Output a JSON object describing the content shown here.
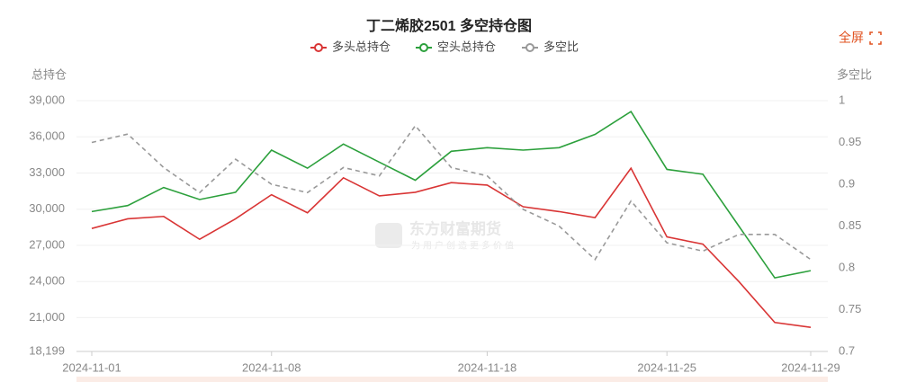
{
  "chart_data": {
    "type": "line",
    "title": "丁二烯胶2501 多空持仓图",
    "button": "全屏",
    "watermark": {
      "brand": "东方财富期货",
      "slogan": "为用户创造更多价值"
    },
    "y_label": "总持仓",
    "y2_label": "多空比",
    "categories": [
      "2024-11-01",
      null,
      null,
      null,
      null,
      "2024-11-08",
      null,
      null,
      null,
      null,
      null,
      "2024-11-18",
      null,
      null,
      null,
      null,
      "2024-11-25",
      null,
      null,
      null,
      "2024-11-29"
    ],
    "ylim": [
      18199,
      39000
    ],
    "yticks": [
      {
        "value": 18199,
        "label": "18,199"
      },
      {
        "value": 21000,
        "label": "21,000"
      },
      {
        "value": 24000,
        "label": "24,000"
      },
      {
        "value": 27000,
        "label": "27,000"
      },
      {
        "value": 30000,
        "label": "30,000"
      },
      {
        "value": 33000,
        "label": "33,000"
      },
      {
        "value": 36000,
        "label": "36,000"
      },
      {
        "value": 39000,
        "label": "39,000"
      }
    ],
    "y2lim": [
      0.7,
      1
    ],
    "y2ticks": [
      0.7,
      0.75,
      0.8,
      0.85,
      0.9,
      0.95,
      1
    ],
    "grid": true,
    "series": [
      {
        "name": "多头总持仓",
        "color": "#d93535",
        "line_style": "solid",
        "values": [
          28400,
          29200,
          29400,
          27500,
          29200,
          31200,
          29700,
          32600,
          31100,
          31400,
          32200,
          32000,
          30200,
          29800,
          29300,
          33400,
          27700,
          27100,
          24000,
          20600,
          20200
        ]
      },
      {
        "name": "空头总持仓",
        "color": "#2ca03c",
        "line_style": "solid",
        "values": [
          29800,
          30300,
          31800,
          30800,
          31400,
          34900,
          33400,
          35400,
          33900,
          32400,
          34800,
          35100,
          34900,
          35100,
          36200,
          38100,
          33300,
          32900,
          28600,
          24300,
          24900
        ]
      },
      {
        "name": "多空比",
        "color": "#999999",
        "line_style": "dashed",
        "axis": "y2",
        "values": [
          0.95,
          0.96,
          0.92,
          0.89,
          0.93,
          0.9,
          0.89,
          0.92,
          0.91,
          0.97,
          0.92,
          0.91,
          0.87,
          0.85,
          0.81,
          0.88,
          0.83,
          0.82,
          0.84,
          0.84,
          0.81
        ]
      }
    ]
  }
}
